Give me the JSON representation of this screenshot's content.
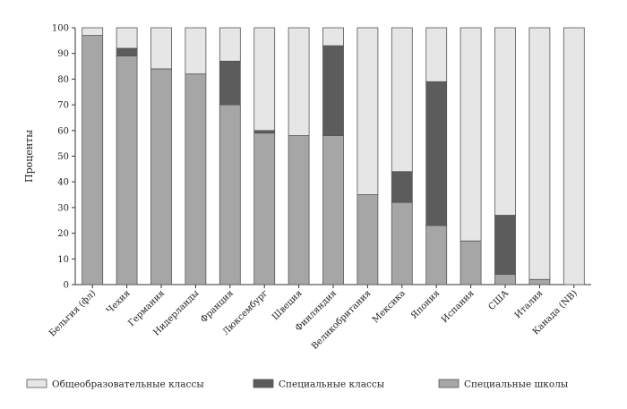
{
  "chart_data": {
    "type": "bar",
    "stacked": true,
    "ylabel": "Проценты",
    "ylim": [
      0,
      100
    ],
    "yticks": [
      0,
      10,
      20,
      30,
      40,
      50,
      60,
      70,
      80,
      90,
      100
    ],
    "categories": [
      "Бельгия (фл)",
      "Чехия",
      "Германия",
      "Нидерланды",
      "Франция",
      "Люксембург",
      "Швеция",
      "Финляндия",
      "Великобритания",
      "Мексика",
      "Япония",
      "Испания",
      "США",
      "Италия",
      "Канада (NB)"
    ],
    "series": [
      {
        "name": "Специальные школы",
        "color": "#a6a6a6",
        "values": [
          97,
          89,
          84,
          82,
          70,
          59,
          58,
          58,
          35,
          32,
          23,
          17,
          4,
          2,
          0
        ]
      },
      {
        "name": "Специальные классы",
        "color": "#5c5c5c",
        "values": [
          0,
          3,
          0,
          0,
          17,
          1,
          0,
          35,
          0,
          12,
          56,
          0,
          23,
          0,
          0
        ]
      },
      {
        "name": "Общеобразовательные классы",
        "color": "#e6e6e6",
        "values": [
          3,
          8,
          16,
          18,
          13,
          40,
          42,
          7,
          65,
          56,
          21,
          83,
          73,
          98,
          100
        ]
      }
    ],
    "legend": {
      "placement": "bottom",
      "order": [
        "Общеобразовательные классы",
        "Специальные классы",
        "Специальные школы"
      ]
    },
    "grid": false
  }
}
